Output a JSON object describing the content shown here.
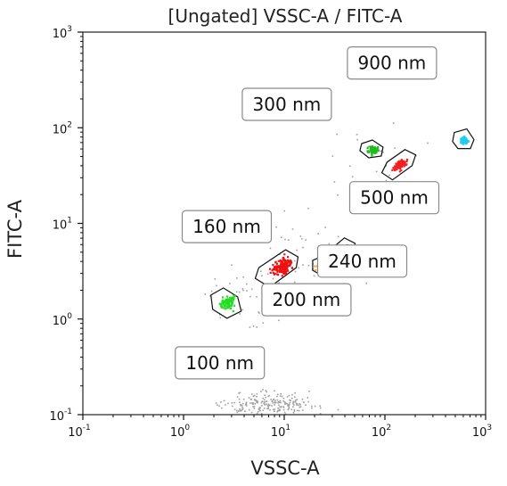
{
  "chart_data": {
    "type": "scatter",
    "title": "[Ungated] VSSC-A / FITC-A",
    "xlabel": "VSSC-A",
    "ylabel": "FITC-A",
    "x_scale": "log",
    "y_scale": "log",
    "xlim": [
      0.1,
      1000
    ],
    "ylim": [
      0.1,
      1000
    ],
    "grid": false,
    "x_ticks": [
      {
        "base": "10",
        "exp": "-1",
        "value": 0.1
      },
      {
        "base": "10",
        "exp": "0",
        "value": 1
      },
      {
        "base": "10",
        "exp": "1",
        "value": 10
      },
      {
        "base": "10",
        "exp": "2",
        "value": 100
      },
      {
        "base": "10",
        "exp": "3",
        "value": 1000
      }
    ],
    "y_ticks": [
      {
        "base": "10",
        "exp": "-1",
        "value": 0.1
      },
      {
        "base": "10",
        "exp": "0",
        "value": 1
      },
      {
        "base": "10",
        "exp": "1",
        "value": 10
      },
      {
        "base": "10",
        "exp": "2",
        "value": 100
      },
      {
        "base": "10",
        "exp": "3",
        "value": 1000
      }
    ],
    "populations": [
      {
        "label": "100 nm",
        "x": 2.7,
        "y": 1.5,
        "color": "#22dd22"
      },
      {
        "label": "160 nm",
        "x": 9.5,
        "y": 3.6,
        "color": "#ee1111"
      },
      {
        "label": "200 nm",
        "x": 23,
        "y": 3.6,
        "color": "#f0a030"
      },
      {
        "label": "240 nm",
        "x": 38,
        "y": 5.0,
        "color": "#1133ee"
      },
      {
        "label": "300 nm",
        "x": 75,
        "y": 60,
        "color": "#22bb22"
      },
      {
        "label": "500 nm",
        "x": 140,
        "y": 42,
        "color": "#ee2222"
      },
      {
        "label": "900 nm",
        "x": 600,
        "y": 75,
        "color": "#22ccee"
      }
    ],
    "noise_color": "#a0a0a0"
  }
}
